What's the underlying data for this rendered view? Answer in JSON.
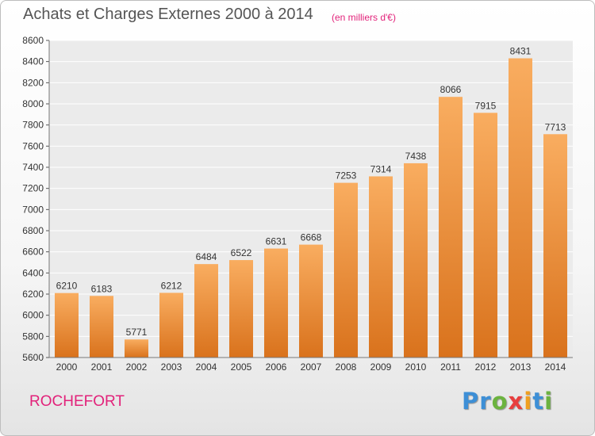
{
  "header": {
    "title": "Achats et Charges Externes 2000 à 2014",
    "subtitle": "(en milliers d'€)"
  },
  "footer": {
    "city": "ROCHEFORT",
    "logo_letters": [
      "P",
      "r",
      "o",
      "x",
      "i",
      "t",
      "i"
    ],
    "logo_colors": [
      "#3d8fd6",
      "#3d8fd6",
      "#6cb33f",
      "#e83e3e",
      "#f0a020",
      "#3d8fd6",
      "#6cb33f"
    ]
  },
  "colors": {
    "bar_light": "#f9ad60",
    "bar_dark": "#d9721c",
    "plot_bg": "#ebebeb",
    "grid": "#ffffff"
  },
  "chart_data": {
    "type": "bar",
    "title": "Achats et Charges Externes 2000 à 2014",
    "subtitle": "(en milliers d'€)",
    "categories": [
      "2000",
      "2001",
      "2002",
      "2003",
      "2004",
      "2005",
      "2006",
      "2007",
      "2008",
      "2009",
      "2010",
      "2011",
      "2012",
      "2013",
      "2014"
    ],
    "values": [
      6210,
      6183,
      5771,
      6212,
      6484,
      6522,
      6631,
      6668,
      7253,
      7314,
      7438,
      8066,
      7915,
      8431,
      7713
    ],
    "ylim": [
      5600,
      8600
    ],
    "yticks": [
      5600,
      5800,
      6000,
      6200,
      6400,
      6600,
      6800,
      7000,
      7200,
      7400,
      7600,
      7800,
      8000,
      8200,
      8400,
      8600
    ],
    "grid": true,
    "data_labels": true
  }
}
